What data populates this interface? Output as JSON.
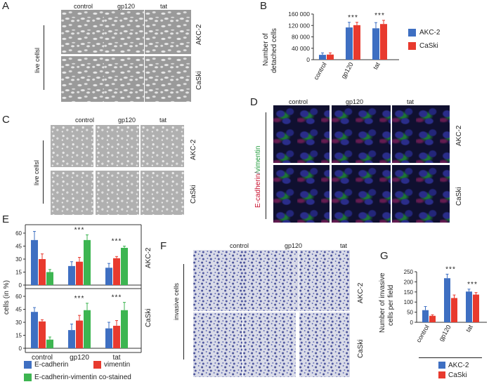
{
  "panels": {
    "A": {
      "letter": "A",
      "columns": [
        "control",
        "gp120",
        "tat"
      ],
      "rows": [
        "AKC-2",
        "CaSki"
      ],
      "side_label": "live cellsl"
    },
    "B": {
      "letter": "B",
      "ylabel_line1": "Number of",
      "ylabel_line2": "detached cells",
      "yticks": [
        "0",
        "40 000",
        "80 000",
        "120 000",
        "160 000"
      ],
      "categories": [
        "control",
        "gp120",
        "tat"
      ],
      "legend": [
        "AKC-2",
        "CaSki"
      ],
      "sig": [
        "***",
        "***"
      ]
    },
    "C": {
      "letter": "C",
      "columns": [
        "control",
        "gp120",
        "tat"
      ],
      "rows": [
        "AKC-2",
        "CaSki"
      ],
      "side_label": "live cellsl"
    },
    "D": {
      "letter": "D",
      "columns": [
        "control",
        "gp120",
        "tat"
      ],
      "rows": [
        "AKC-2",
        "CaSki"
      ],
      "side_label_red": "E-cadherin",
      "side_label_sep": "/",
      "side_label_green": "vimentin"
    },
    "E": {
      "letter": "E",
      "ylabel": "cells (in %)",
      "yticks": [
        "0",
        "15",
        "30",
        "45",
        "60"
      ],
      "categories": [
        "control",
        "gp120",
        "tat"
      ],
      "row_labels": [
        "AKC-2",
        "CaSki"
      ],
      "sig": [
        "***",
        "***",
        "***",
        "***"
      ],
      "legend": [
        "E-cadherin",
        "vimentin",
        "E-cadherin-vimentin co-stained"
      ]
    },
    "F": {
      "letter": "F",
      "columns": [
        "control",
        "gp120",
        "tat"
      ],
      "rows": [
        "AKC-2",
        "CaSki"
      ],
      "side_label": "invasive cells"
    },
    "G": {
      "letter": "G",
      "ylabel_line1": "Number of invasive",
      "ylabel_line2": "cells per field",
      "yticks": [
        "0",
        "50",
        "100",
        "150",
        "200",
        "250"
      ],
      "categories": [
        "control",
        "gp120",
        "tat"
      ],
      "legend": [
        "AKC-2",
        "CaSki"
      ],
      "sig": [
        "***",
        "***"
      ]
    }
  },
  "colors": {
    "blue": "#3e6fc2",
    "red": "#e83a2e",
    "green": "#3db551"
  },
  "chart_data": [
    {
      "panel": "B",
      "type": "bar",
      "categories": [
        "control",
        "gp120",
        "tat"
      ],
      "ylim": [
        0,
        160000
      ],
      "series": [
        {
          "name": "AKC-2",
          "values": [
            17000,
            113000,
            110000
          ],
          "errors": [
            7000,
            18000,
            20000
          ]
        },
        {
          "name": "CaSki",
          "values": [
            18000,
            121000,
            125000
          ],
          "errors": [
            6000,
            10000,
            13000
          ]
        }
      ]
    },
    {
      "panel": "E-AKC-2",
      "type": "bar",
      "categories": [
        "control",
        "gp120",
        "tat"
      ],
      "ylim": [
        0,
        60
      ],
      "series": [
        {
          "name": "E-cadherin",
          "values": [
            52,
            22,
            20
          ],
          "errors": [
            10,
            5,
            5
          ]
        },
        {
          "name": "vimentin",
          "values": [
            30,
            27,
            31
          ],
          "errors": [
            6,
            5,
            2
          ]
        },
        {
          "name": "E-cadherin-vimentin co-stained",
          "values": [
            15,
            52,
            43
          ],
          "errors": [
            3,
            6,
            2
          ]
        }
      ]
    },
    {
      "panel": "E-CaSki",
      "type": "bar",
      "categories": [
        "control",
        "gp120",
        "tat"
      ],
      "ylim": [
        0,
        60
      ],
      "series": [
        {
          "name": "E-cadherin",
          "values": [
            42,
            21,
            23
          ],
          "errors": [
            5,
            7,
            7
          ]
        },
        {
          "name": "vimentin",
          "values": [
            31,
            32,
            26
          ],
          "errors": [
            2,
            6,
            6
          ]
        },
        {
          "name": "E-cadherin-vimentin co-stained",
          "values": [
            10,
            44,
            44
          ],
          "errors": [
            3,
            8,
            9
          ]
        }
      ]
    },
    {
      "panel": "G",
      "type": "bar",
      "categories": [
        "control",
        "gp120",
        "tat"
      ],
      "ylim": [
        0,
        250
      ],
      "series": [
        {
          "name": "AKC-2",
          "values": [
            60,
            218,
            152
          ],
          "errors": [
            18,
            20,
            12
          ]
        },
        {
          "name": "CaSki",
          "values": [
            32,
            120,
            137
          ],
          "errors": [
            5,
            15,
            10
          ]
        }
      ]
    }
  ]
}
